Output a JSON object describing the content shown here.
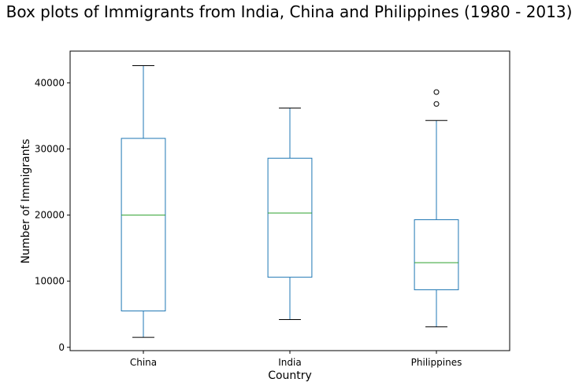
{
  "chart_data": {
    "type": "box",
    "title": "Box plots of Immigrants from India, China and Philippines (1980 - 2013)",
    "xlabel": "Country",
    "ylabel": "Number of Immigrants",
    "categories": [
      "China",
      "India",
      "Philippines"
    ],
    "ylim": [
      -500,
      44800
    ],
    "yticks": [
      0,
      10000,
      20000,
      30000,
      40000
    ],
    "ytick_labels": [
      "0",
      "10000",
      "20000",
      "30000",
      "40000"
    ],
    "grid": false,
    "boxes": [
      {
        "name": "China",
        "whisker_low": 1500,
        "q1": 5500,
        "median": 20000,
        "q3": 31600,
        "whisker_high": 42600,
        "outliers": []
      },
      {
        "name": "India",
        "whisker_low": 4200,
        "q1": 10600,
        "median": 20300,
        "q3": 28600,
        "whisker_high": 36200,
        "outliers": []
      },
      {
        "name": "Philippines",
        "whisker_low": 3100,
        "q1": 8700,
        "median": 12800,
        "q3": 19300,
        "whisker_high": 34300,
        "outliers": [
          36800,
          38600
        ]
      }
    ],
    "colors": {
      "box": "#1f77b4",
      "median": "#2ca02c",
      "cap": "#000000",
      "outlier": "#000000"
    }
  }
}
